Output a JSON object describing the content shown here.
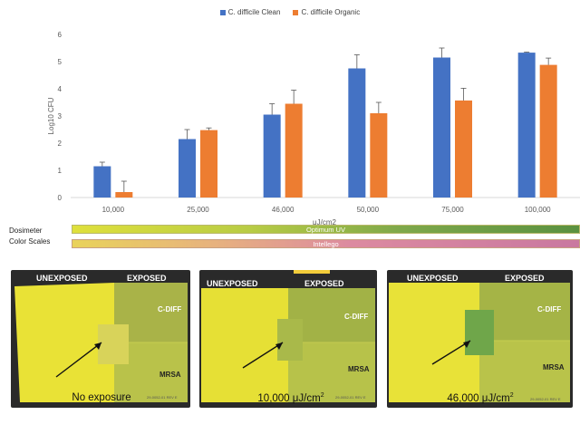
{
  "chart_data": {
    "type": "bar",
    "categories": [
      "10,000",
      "25,000",
      "46,000",
      "50,000",
      "75,000",
      "100,000"
    ],
    "series": [
      {
        "name": "C. difficile Clean",
        "color": "#4472c4",
        "values": [
          1.15,
          2.15,
          3.05,
          4.75,
          5.15,
          5.33
        ],
        "errors": [
          0.15,
          0.35,
          0.4,
          0.5,
          0.35,
          0.02
        ]
      },
      {
        "name": "C. difficile Organic",
        "color": "#ed7d31",
        "values": [
          0.2,
          2.48,
          3.45,
          3.1,
          3.57,
          4.88
        ],
        "errors": [
          0.4,
          0.08,
          0.5,
          0.4,
          0.45,
          0.25
        ]
      }
    ],
    "ylabel": "Log10 CFU",
    "xlabel": "μJ/cm2",
    "ylim": [
      0,
      6
    ],
    "yticks": [
      "0",
      "1",
      "2",
      "3",
      "4",
      "5",
      "6"
    ],
    "grid": false,
    "legend_position": "top-center"
  },
  "scales": {
    "label_line1": "Dosimeter",
    "label_line2": "Color Scales",
    "optimum": "Optimum UV",
    "intellego": "Intellego"
  },
  "photos": [
    {
      "unexposed": "UNEXPOSED",
      "exposed": "EXPOSED",
      "cdiff": "C-DIFF",
      "mrsa": "MRSA",
      "patch_color": "#d8d35a",
      "code": "29-0052-01 REV E"
    },
    {
      "unexposed": "UNEXPOSED",
      "exposed": "EXPOSED",
      "cdiff": "C-DIFF",
      "mrsa": "MRSA",
      "patch_color": "#a9b94a",
      "code": "29-0052-01 REV E"
    },
    {
      "unexposed": "UNEXPOSED",
      "exposed": "EXPOSED",
      "cdiff": "C-DIFF",
      "mrsa": "MRSA",
      "patch_color": "#6fa64a",
      "code": "29-0052-01 REV E"
    }
  ],
  "captions": {
    "c1": "No exposure",
    "c2_value": "10,000 μJ/cm",
    "c3_value": "46,000 μJ/cm",
    "sup": "2"
  }
}
